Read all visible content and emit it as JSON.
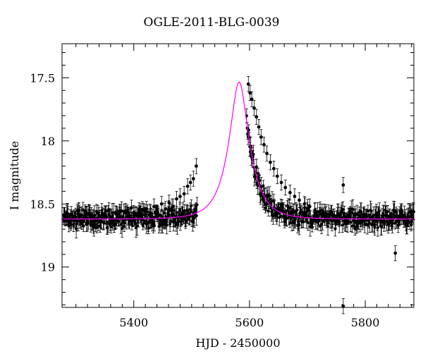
{
  "chart_data": {
    "type": "scatter",
    "title": "OGLE-2011-BLG-0039",
    "xlabel": "HJD - 2450000",
    "ylabel": "I magnitude",
    "xlim": [
      5276,
      5884
    ],
    "ylim": [
      19.32,
      17.23
    ],
    "y_inverted": true,
    "x_ticks": [
      5400,
      5600,
      5800
    ],
    "y_ticks": [
      17.5,
      18,
      18.5,
      19
    ],
    "x_tick_labels": [
      "5400",
      "5600",
      "5800"
    ],
    "y_tick_labels": [
      "17.5",
      "18",
      "18.5",
      "19"
    ],
    "grid": false,
    "colors": {
      "data": "#000000",
      "model": "#ff00ff"
    },
    "model": {
      "name": "",
      "t0": 5582,
      "baseline_mag": 18.62,
      "peak_mag": 17.51,
      "tE": 34
    },
    "observations": {
      "season1_range": [
        5278,
        5510
      ],
      "season2_range": [
        5595,
        5884
      ],
      "typical_error": 0.06,
      "points": [
        [
          5286,
          18.6
        ],
        [
          5292,
          18.58
        ],
        [
          5300,
          18.63
        ],
        [
          5305,
          18.55
        ],
        [
          5312,
          18.62
        ],
        [
          5318,
          18.66
        ],
        [
          5324,
          18.59
        ],
        [
          5331,
          18.61
        ],
        [
          5338,
          18.57
        ],
        [
          5344,
          18.64
        ],
        [
          5350,
          18.6
        ],
        [
          5357,
          18.55
        ],
        [
          5363,
          18.63
        ],
        [
          5370,
          18.58
        ],
        [
          5376,
          18.61
        ],
        [
          5383,
          18.56
        ],
        [
          5390,
          18.6
        ],
        [
          5396,
          18.53
        ],
        [
          5402,
          18.59
        ],
        [
          5409,
          18.55
        ],
        [
          5416,
          18.62
        ],
        [
          5422,
          18.54
        ],
        [
          5429,
          18.57
        ],
        [
          5435,
          18.52
        ],
        [
          5441,
          18.58
        ],
        [
          5448,
          18.5
        ],
        [
          5455,
          18.54
        ],
        [
          5461,
          18.49
        ],
        [
          5468,
          18.52
        ],
        [
          5474,
          18.46
        ],
        [
          5480,
          18.44
        ],
        [
          5487,
          18.42
        ],
        [
          5493,
          18.36
        ],
        [
          5498,
          18.33
        ],
        [
          5503,
          18.3
        ],
        [
          5508,
          18.2
        ],
        [
          5598,
          17.55
        ],
        [
          5601,
          17.62
        ],
        [
          5604,
          17.67
        ],
        [
          5608,
          17.74
        ],
        [
          5612,
          17.81
        ],
        [
          5616,
          17.89
        ],
        [
          5620,
          17.97
        ],
        [
          5625,
          18.03
        ],
        [
          5630,
          18.1
        ],
        [
          5636,
          18.17
        ],
        [
          5642,
          18.22
        ],
        [
          5648,
          18.28
        ],
        [
          5655,
          18.33
        ],
        [
          5662,
          18.37
        ],
        [
          5670,
          18.41
        ],
        [
          5678,
          18.44
        ],
        [
          5686,
          18.47
        ],
        [
          5695,
          18.5
        ],
        [
          5704,
          18.52
        ],
        [
          5713,
          18.55
        ],
        [
          5722,
          18.56
        ],
        [
          5732,
          18.58
        ],
        [
          5742,
          18.57
        ],
        [
          5752,
          18.59
        ],
        [
          5762,
          18.35
        ],
        [
          5762,
          19.31
        ],
        [
          5772,
          18.6
        ],
        [
          5782,
          18.58
        ],
        [
          5792,
          18.62
        ],
        [
          5802,
          18.6
        ],
        [
          5812,
          18.61
        ],
        [
          5822,
          18.59
        ],
        [
          5832,
          18.63
        ],
        [
          5842,
          18.6
        ],
        [
          5852,
          18.89
        ],
        [
          5862,
          18.57
        ],
        [
          5872,
          18.64
        ],
        [
          5880,
          18.6
        ]
      ]
    }
  }
}
